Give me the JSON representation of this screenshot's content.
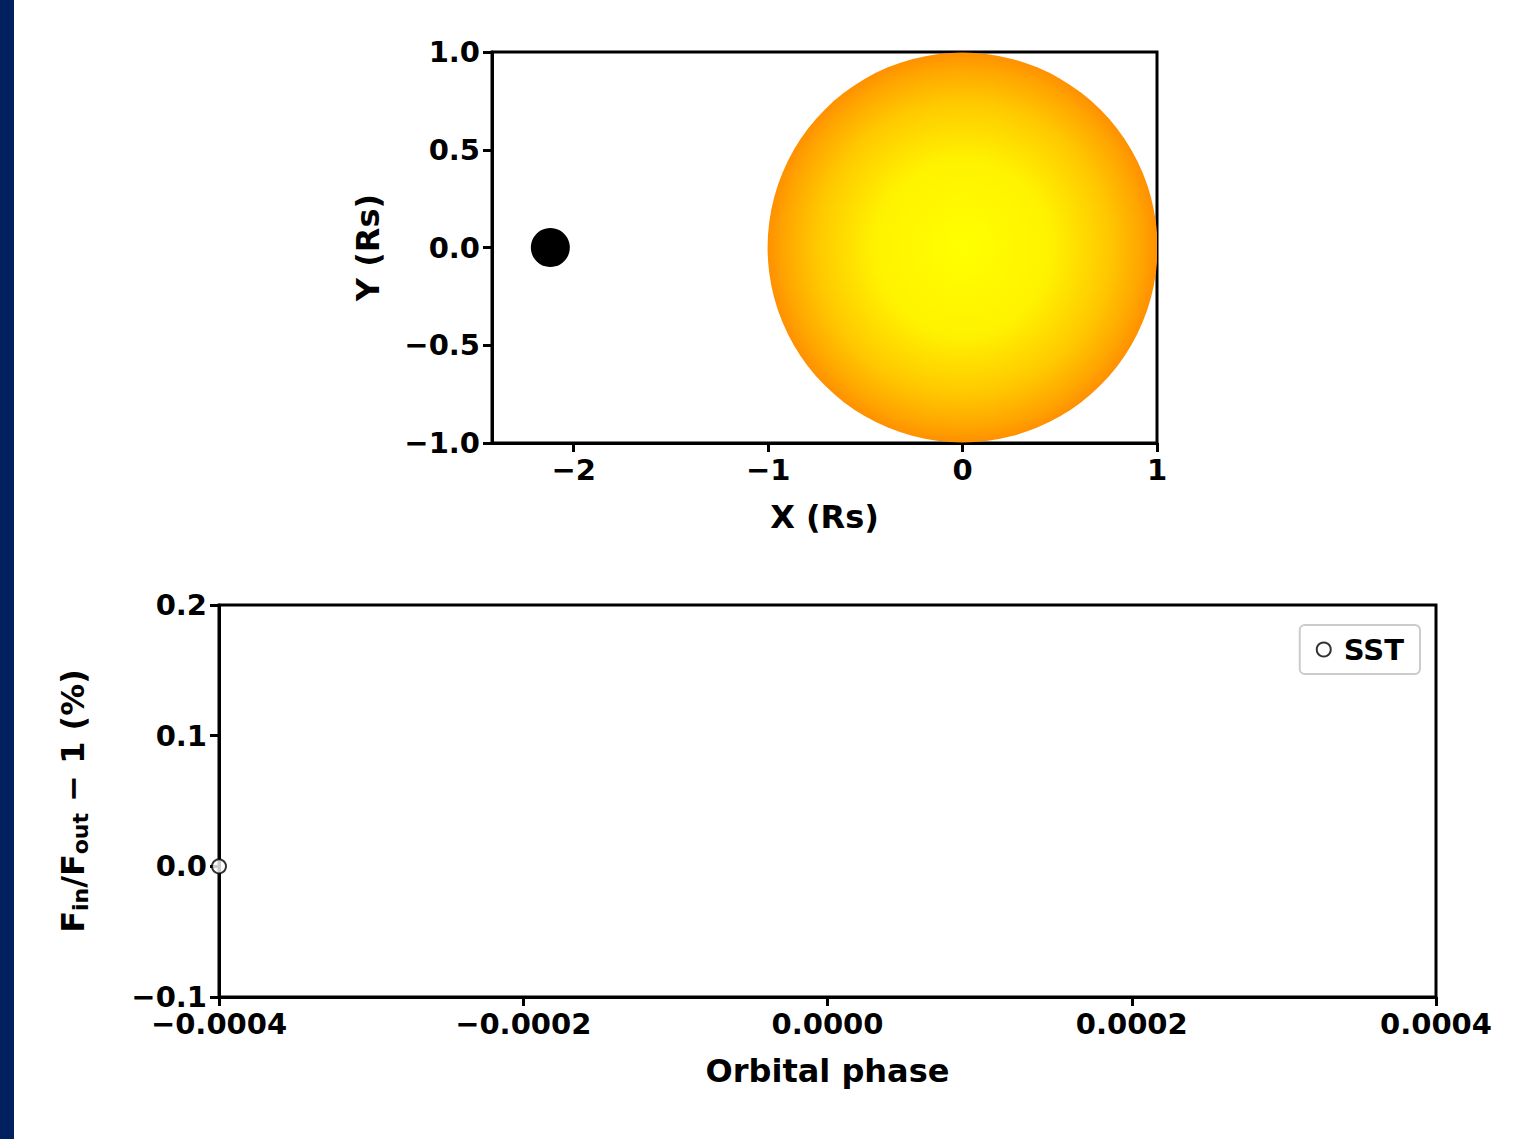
{
  "chart_data": [
    {
      "type": "disk",
      "xlabel": "X (Rs)",
      "ylabel": "Y (Rs)",
      "xlim": [
        -2.42,
        1
      ],
      "ylim": [
        -1,
        1
      ],
      "xticks": [
        {
          "value": -2,
          "label": "−2"
        },
        {
          "value": -1,
          "label": "−1"
        },
        0,
        1
      ],
      "yticks": [
        {
          "value": -1,
          "label": "−1.0"
        },
        {
          "value": -0.5,
          "label": "−0.5"
        },
        {
          "value": 0,
          "label": "0.0"
        },
        0.5,
        {
          "value": 1,
          "label": "1.0"
        }
      ],
      "grid": false,
      "star": {
        "x": 0,
        "y": 0,
        "radius": 1
      },
      "planet": {
        "x": -2.12,
        "y": 0,
        "radius": 0.1,
        "color": "#000000"
      }
    },
    {
      "type": "scatter",
      "xlabel": "Orbital phase",
      "ylabel": "Fin/Fout − 1 (%)",
      "xlim": [
        -0.0004,
        0.0004
      ],
      "ylim": [
        -0.1,
        0.2
      ],
      "xticks": [
        {
          "value": -0.0004,
          "label": "−0.0004"
        },
        {
          "value": -0.0002,
          "label": "−0.0002"
        },
        {
          "value": 0,
          "label": "0.0000"
        },
        0.0002,
        0.0004
      ],
      "yticks": [
        {
          "value": -0.1,
          "label": "−0.1"
        },
        {
          "value": 0,
          "label": "0.0"
        },
        0.1,
        0.2
      ],
      "grid": false,
      "legend": "upper right",
      "series": [
        {
          "name": "SST",
          "color": "#000000",
          "marker": "open circle",
          "x": [
            -0.0004
          ],
          "values": [
            0.0
          ]
        }
      ]
    }
  ]
}
